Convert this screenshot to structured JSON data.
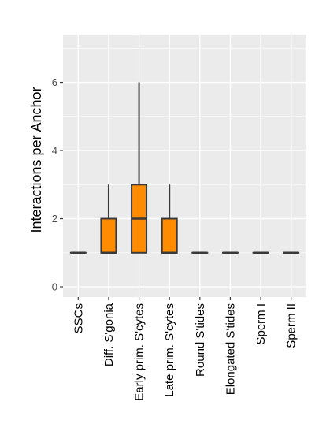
{
  "chart_data": {
    "type": "box",
    "ylabel": "Interactions per Anchor",
    "xlabel": "",
    "ylim": [
      -0.3,
      7.4
    ],
    "yticks": [
      0,
      2,
      4,
      6
    ],
    "categories": [
      "SSCs",
      "Diff. S'gonia",
      "Early prim. S'cytes",
      "Late prim. S'cytes",
      "Round S'tides",
      "Elongated S'tides",
      "Sperm I",
      "Sperm II"
    ],
    "boxes": [
      {
        "min": 1,
        "q1": 1,
        "median": 1,
        "q3": 1,
        "max": 1
      },
      {
        "min": 1,
        "q1": 1,
        "median": 1,
        "q3": 2,
        "max": 3
      },
      {
        "min": 1,
        "q1": 1,
        "median": 2,
        "q3": 3,
        "max": 6
      },
      {
        "min": 1,
        "q1": 1,
        "median": 1,
        "q3": 2,
        "max": 3
      },
      {
        "min": 1,
        "q1": 1,
        "median": 1,
        "q3": 1,
        "max": 1
      },
      {
        "min": 1,
        "q1": 1,
        "median": 1,
        "q3": 1,
        "max": 1
      },
      {
        "min": 1,
        "q1": 1,
        "median": 1,
        "q3": 1,
        "max": 1
      },
      {
        "min": 1,
        "q1": 1,
        "median": 1,
        "q3": 1,
        "max": 1
      }
    ],
    "grid": true,
    "colors": {
      "box_fill": "#FF8C00",
      "box_stroke": "#3a3a3a",
      "panel_bg": "#EBEBEB",
      "grid": "#FFFFFF"
    }
  }
}
